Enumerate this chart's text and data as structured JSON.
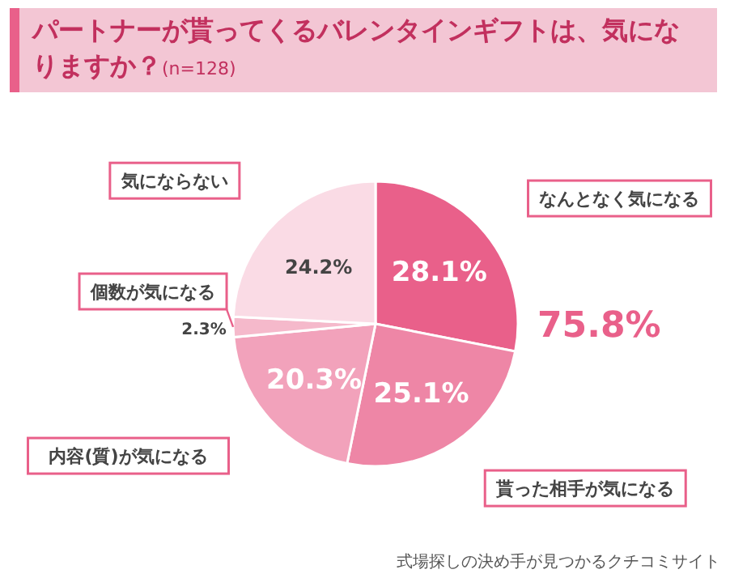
{
  "chart_data": {
    "type": "pie",
    "title": "パートナーが貰ってくるバレンタインギフトは、気になりますか？",
    "subtitle": "(n=128)",
    "categories": [
      "なんとなく気になる",
      "貰った相手が気になる",
      "内容(質)が気になる",
      "個数が気になる",
      "気にならない"
    ],
    "values": [
      28.1,
      25.1,
      20.3,
      2.3,
      24.2
    ],
    "value_labels": [
      "28.1%",
      "25.1%",
      "20.3%",
      "2.3%",
      "24.2%"
    ],
    "colors": [
      "#e9608a",
      "#ee86a6",
      "#f2a2bb",
      "#f5b9cb",
      "#fadbe5"
    ],
    "annotations": [
      "75.8%",
      "式場探しの決め手が見つかるクチコミサイト"
    ]
  }
}
